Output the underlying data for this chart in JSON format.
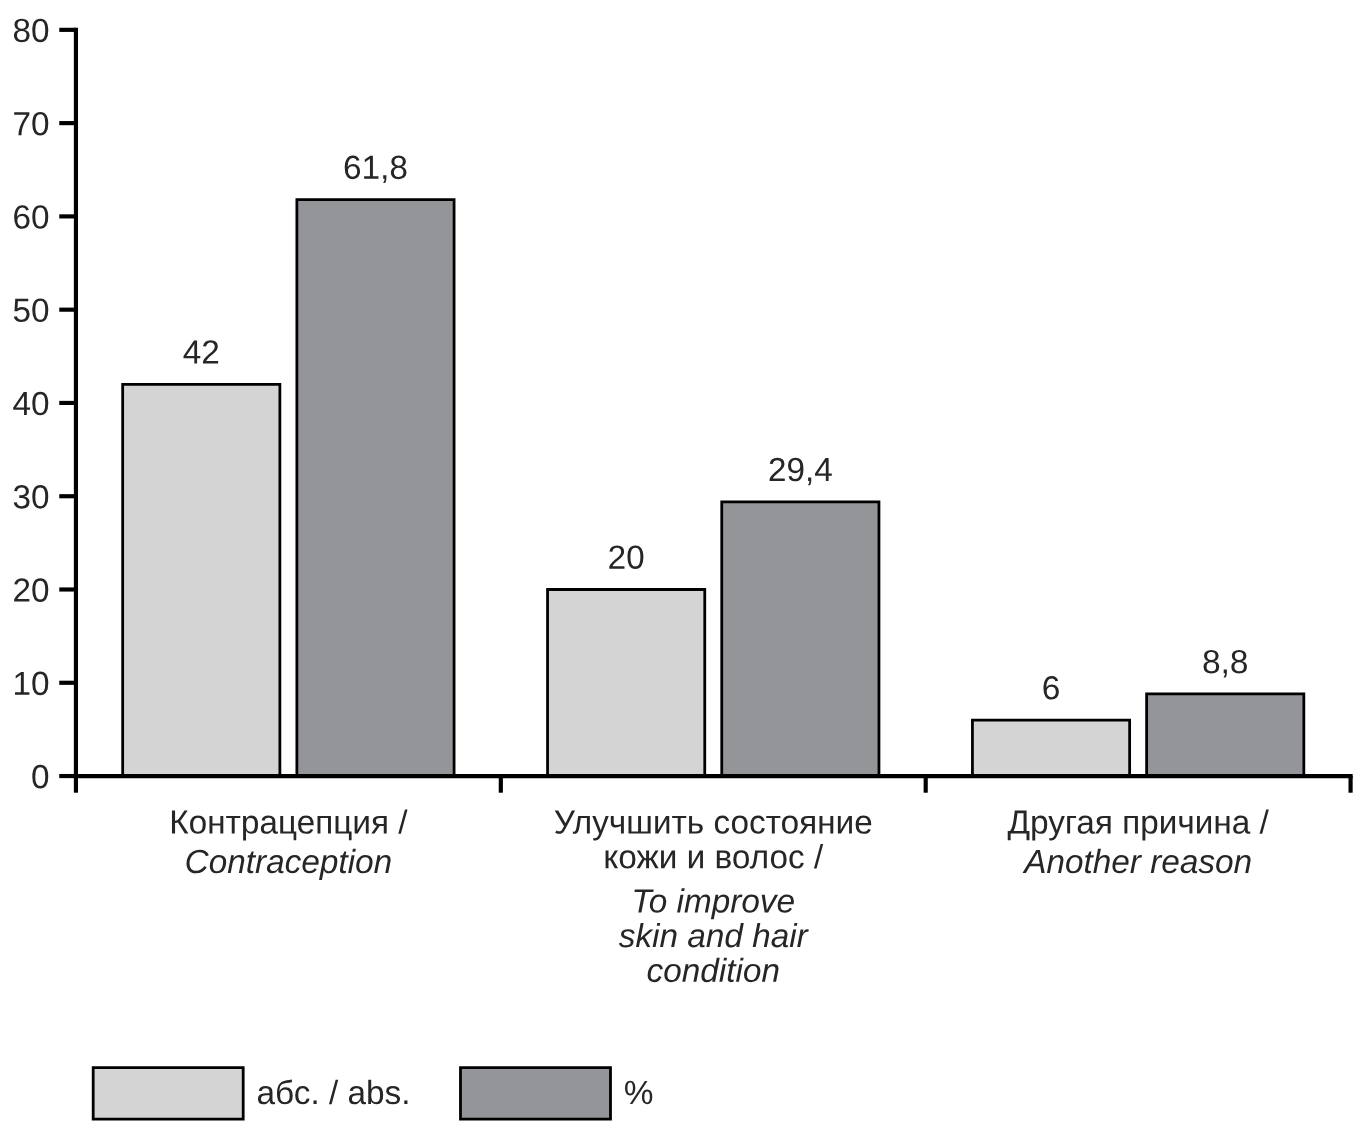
{
  "chart_data": {
    "type": "bar",
    "categories": [
      "Контрацепция /\nContraception",
      "Улучшить состояние\nкожи и волос /\nTo improve\nskin and hair\ncondition",
      "Другая причина /\nAnother reason"
    ],
    "series": [
      {
        "name": "абс. / abs.",
        "color": "#d4d4d4",
        "values": [
          42,
          20,
          6
        ],
        "value_labels": [
          "42",
          "20",
          "6"
        ]
      },
      {
        "name": "%",
        "color": "#939598",
        "values": [
          61.8,
          29.4,
          8.8
        ],
        "value_labels": [
          "61,8",
          "29,4",
          "8,8"
        ]
      }
    ],
    "ylim": [
      0,
      80
    ],
    "yticks": [
      0,
      10,
      20,
      30,
      40,
      50,
      60,
      70,
      80
    ],
    "grid": false,
    "legend": "bottom left"
  }
}
